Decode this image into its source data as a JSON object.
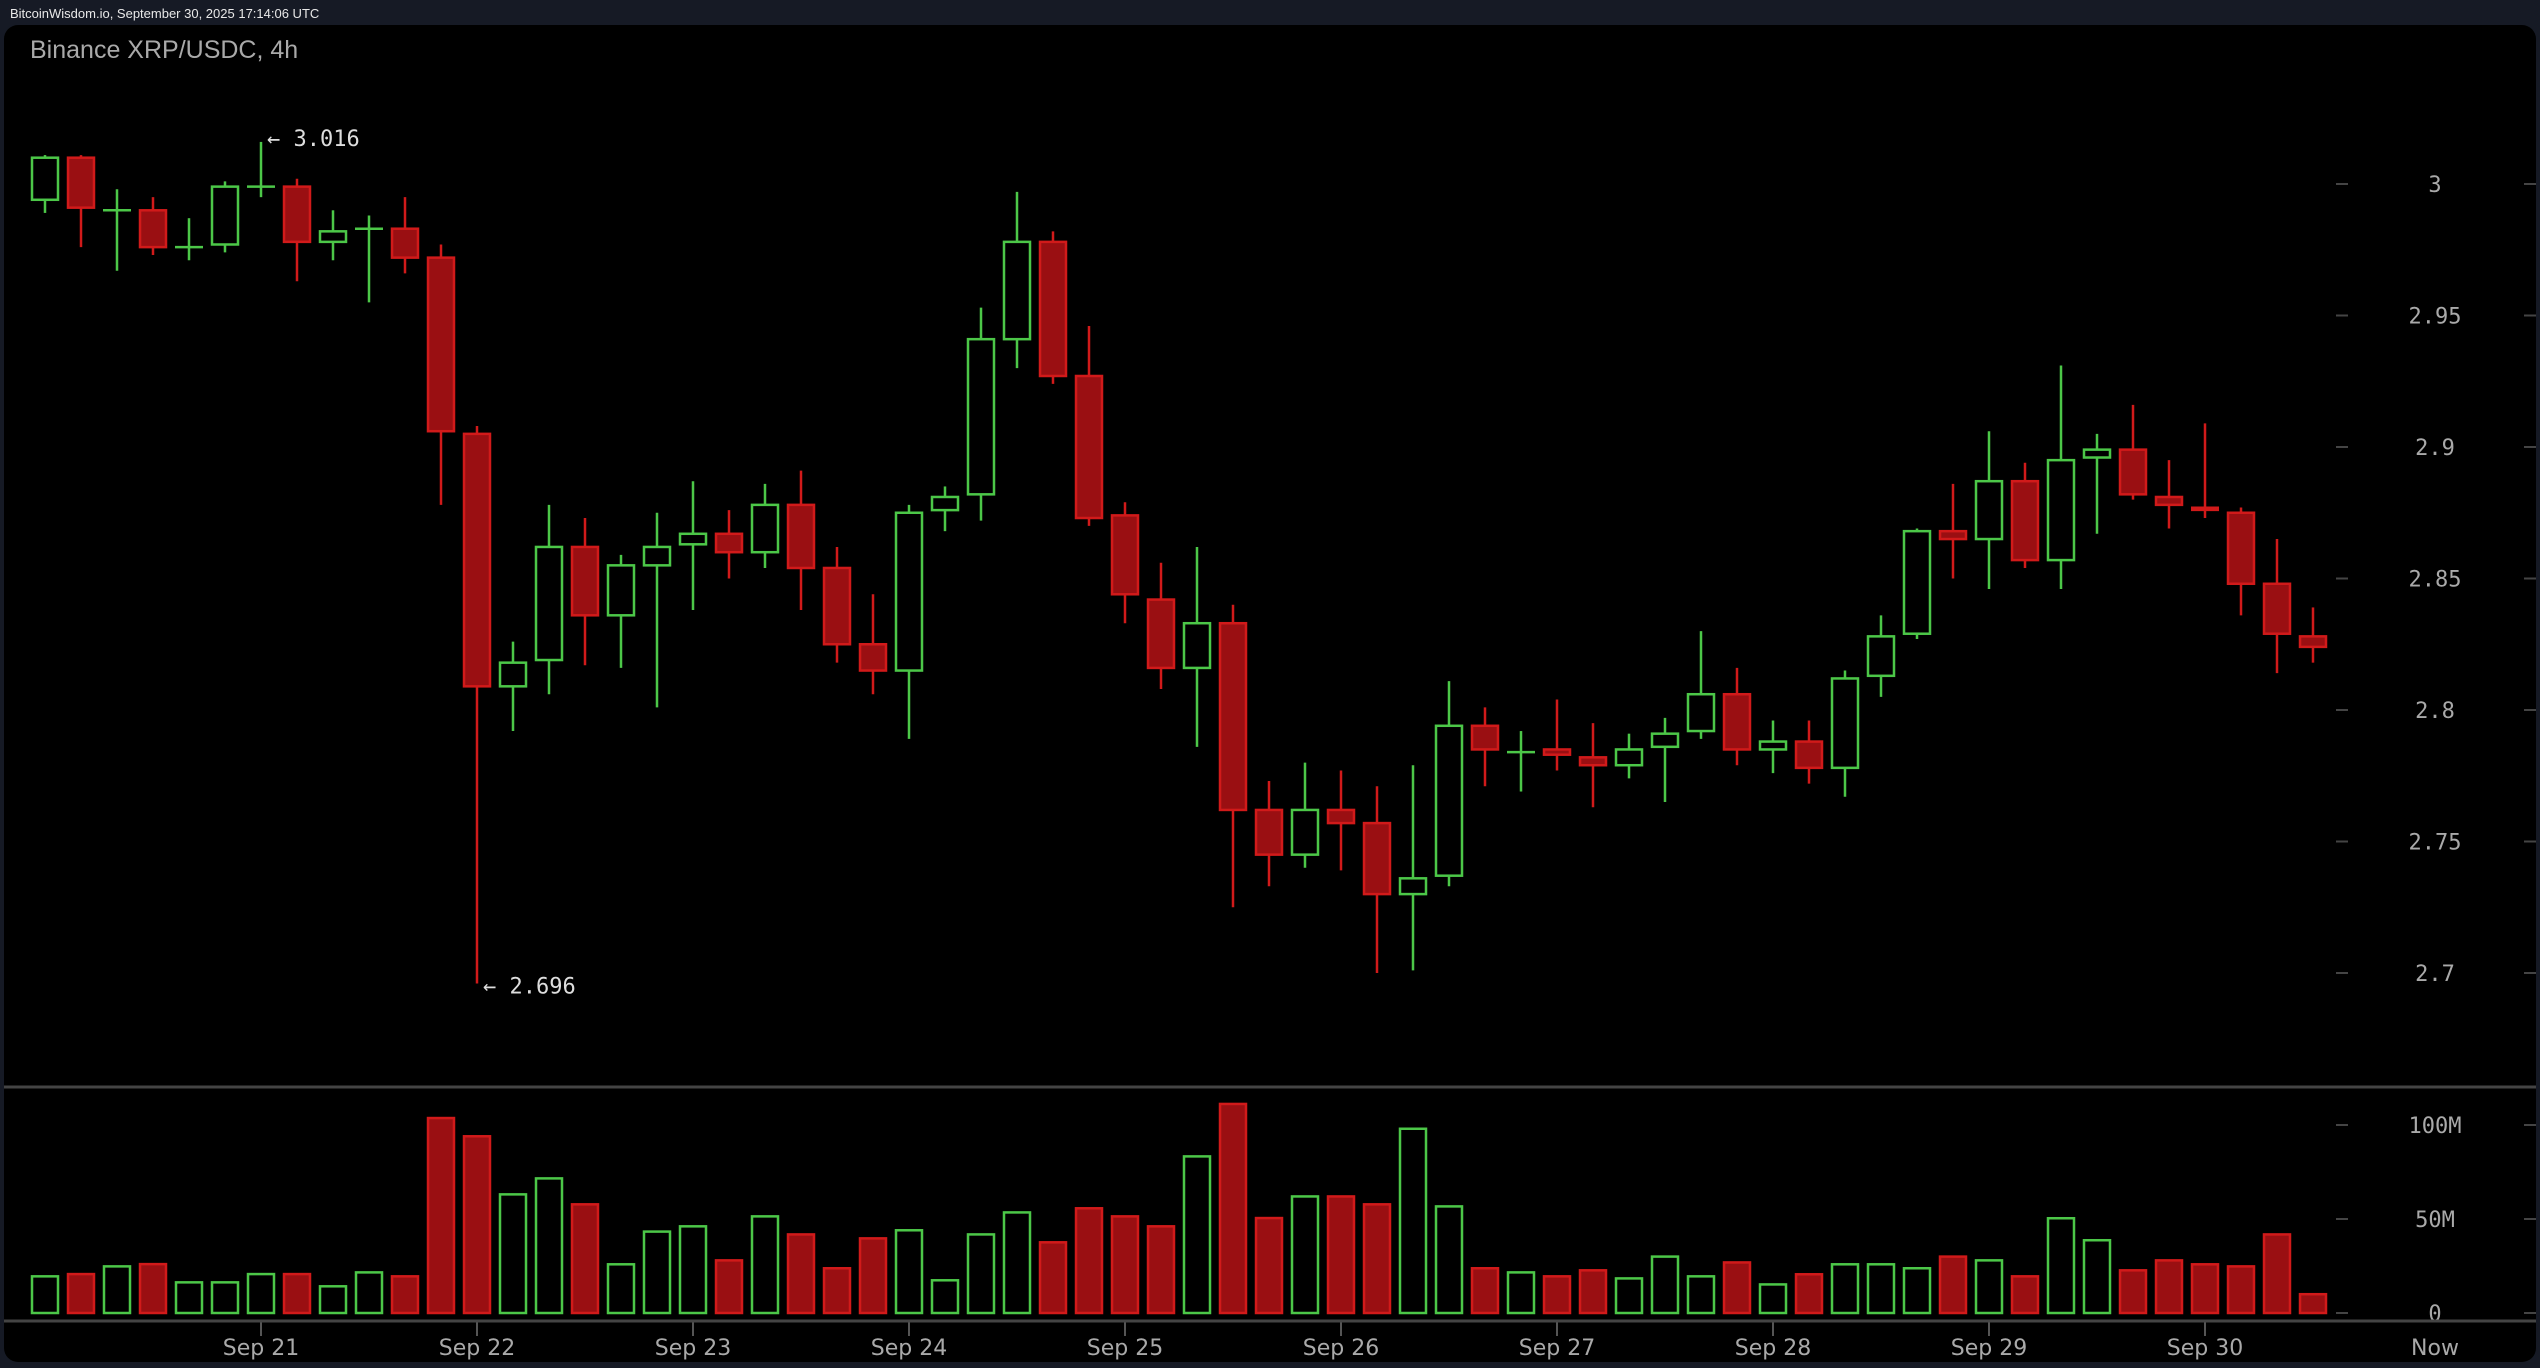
{
  "header": {
    "source_line": "BitcoinWisdom.io, September 30, 2025 17:14:06 UTC",
    "chart_title": "Binance XRP/USDC, 4h"
  },
  "colors": {
    "up": "#4cc748",
    "down": "#d11a1a",
    "down_fill": "#9a0f12",
    "axis_text": "#a9a9a9",
    "annotation_text": "#dddddd",
    "separator": "#444444",
    "page_bg": "#161a25",
    "panel_bg": "#000000"
  },
  "annotations": {
    "high": {
      "label": "← 3.016",
      "value": 3.016,
      "candle_index": 6
    },
    "low": {
      "label": "← 2.696",
      "value": 2.696,
      "candle_index": 12
    }
  },
  "chart_data": {
    "type": "candlestick",
    "title": "Binance XRP/USDC, 4h",
    "xlabel": "",
    "ylabel": "",
    "price_axis": {
      "ticks": [
        3,
        2.95,
        2.9,
        2.85,
        2.8,
        2.75,
        2.7
      ],
      "tick_labels": [
        "3",
        "2.95",
        "2.9",
        "2.85",
        "2.8",
        "2.75",
        "2.7"
      ],
      "ylim": [
        2.66,
        3.04
      ]
    },
    "volume_axis": {
      "ticks": [
        100,
        50,
        0
      ],
      "tick_labels": [
        "100M",
        "50M",
        "0"
      ],
      "unit": "M"
    },
    "x_axis": {
      "tick_labels": [
        "Sep 21",
        "Sep 22",
        "Sep 23",
        "Sep 24",
        "Sep 25",
        "Sep 26",
        "Sep 27",
        "Sep 28",
        "Sep 29",
        "Sep 30",
        "Now"
      ],
      "tick_candle_index": [
        6,
        12,
        18,
        24,
        30,
        36,
        42,
        48,
        54,
        60
      ]
    },
    "grid": false,
    "legend": null,
    "candles": [
      {
        "o": 2.994,
        "h": 3.011,
        "l": 2.989,
        "c": 3.01,
        "v": 19.5
      },
      {
        "o": 3.01,
        "h": 3.011,
        "l": 2.976,
        "c": 2.991,
        "v": 20.7
      },
      {
        "o": 2.99,
        "h": 2.998,
        "l": 2.967,
        "c": 2.99,
        "v": 24.8
      },
      {
        "o": 2.99,
        "h": 2.995,
        "l": 2.973,
        "c": 2.976,
        "v": 26.0
      },
      {
        "o": 2.976,
        "h": 2.987,
        "l": 2.971,
        "c": 2.976,
        "v": 16.3
      },
      {
        "o": 2.977,
        "h": 3.001,
        "l": 2.974,
        "c": 2.999,
        "v": 16.3
      },
      {
        "o": 2.999,
        "h": 3.016,
        "l": 2.995,
        "c": 2.999,
        "v": 20.7
      },
      {
        "o": 2.999,
        "h": 3.002,
        "l": 2.963,
        "c": 2.978,
        "v": 20.7
      },
      {
        "o": 2.978,
        "h": 2.99,
        "l": 2.971,
        "c": 2.982,
        "v": 14.2
      },
      {
        "o": 2.983,
        "h": 2.988,
        "l": 2.955,
        "c": 2.983,
        "v": 21.6
      },
      {
        "o": 2.983,
        "h": 2.995,
        "l": 2.966,
        "c": 2.972,
        "v": 19.5
      },
      {
        "o": 2.972,
        "h": 2.977,
        "l": 2.878,
        "c": 2.906,
        "v": 103.7
      },
      {
        "o": 2.905,
        "h": 2.908,
        "l": 2.696,
        "c": 2.809,
        "v": 94.0
      },
      {
        "o": 2.809,
        "h": 2.826,
        "l": 2.792,
        "c": 2.818,
        "v": 63.1
      },
      {
        "o": 2.819,
        "h": 2.878,
        "l": 2.806,
        "c": 2.862,
        "v": 71.6
      },
      {
        "o": 2.862,
        "h": 2.873,
        "l": 2.817,
        "c": 2.836,
        "v": 57.8
      },
      {
        "o": 2.836,
        "h": 2.859,
        "l": 2.816,
        "c": 2.855,
        "v": 25.9
      },
      {
        "o": 2.855,
        "h": 2.875,
        "l": 2.801,
        "c": 2.862,
        "v": 43.3
      },
      {
        "o": 2.863,
        "h": 2.887,
        "l": 2.838,
        "c": 2.867,
        "v": 46.1
      },
      {
        "o": 2.867,
        "h": 2.876,
        "l": 2.85,
        "c": 2.86,
        "v": 28.0
      },
      {
        "o": 2.86,
        "h": 2.886,
        "l": 2.854,
        "c": 2.878,
        "v": 51.4
      },
      {
        "o": 2.878,
        "h": 2.891,
        "l": 2.838,
        "c": 2.854,
        "v": 41.8
      },
      {
        "o": 2.854,
        "h": 2.862,
        "l": 2.818,
        "c": 2.825,
        "v": 23.8
      },
      {
        "o": 2.825,
        "h": 2.844,
        "l": 2.806,
        "c": 2.815,
        "v": 39.7
      },
      {
        "o": 2.815,
        "h": 2.878,
        "l": 2.789,
        "c": 2.875,
        "v": 44.0
      },
      {
        "o": 2.876,
        "h": 2.885,
        "l": 2.868,
        "c": 2.881,
        "v": 17.4
      },
      {
        "o": 2.882,
        "h": 2.953,
        "l": 2.872,
        "c": 2.941,
        "v": 41.8
      },
      {
        "o": 2.941,
        "h": 2.997,
        "l": 2.93,
        "c": 2.978,
        "v": 53.5
      },
      {
        "o": 2.978,
        "h": 2.982,
        "l": 2.924,
        "c": 2.927,
        "v": 37.6
      },
      {
        "o": 2.927,
        "h": 2.946,
        "l": 2.87,
        "c": 2.873,
        "v": 55.7
      },
      {
        "o": 2.874,
        "h": 2.879,
        "l": 2.833,
        "c": 2.844,
        "v": 51.4
      },
      {
        "o": 2.842,
        "h": 2.856,
        "l": 2.808,
        "c": 2.816,
        "v": 46.1
      },
      {
        "o": 2.816,
        "h": 2.862,
        "l": 2.786,
        "c": 2.833,
        "v": 83.3
      },
      {
        "o": 2.833,
        "h": 2.84,
        "l": 2.725,
        "c": 2.762,
        "v": 111.2
      },
      {
        "o": 2.762,
        "h": 2.773,
        "l": 2.733,
        "c": 2.745,
        "v": 50.5
      },
      {
        "o": 2.745,
        "h": 2.78,
        "l": 2.74,
        "c": 2.762,
        "v": 62.0
      },
      {
        "o": 2.762,
        "h": 2.777,
        "l": 2.739,
        "c": 2.757,
        "v": 62.0
      },
      {
        "o": 2.757,
        "h": 2.771,
        "l": 2.7,
        "c": 2.73,
        "v": 57.8
      },
      {
        "o": 2.73,
        "h": 2.779,
        "l": 2.701,
        "c": 2.736,
        "v": 98.0
      },
      {
        "o": 2.737,
        "h": 2.811,
        "l": 2.733,
        "c": 2.794,
        "v": 56.7
      },
      {
        "o": 2.794,
        "h": 2.801,
        "l": 2.771,
        "c": 2.785,
        "v": 23.8
      },
      {
        "o": 2.784,
        "h": 2.792,
        "l": 2.769,
        "c": 2.784,
        "v": 21.6
      },
      {
        "o": 2.785,
        "h": 2.804,
        "l": 2.777,
        "c": 2.783,
        "v": 19.5
      },
      {
        "o": 2.782,
        "h": 2.795,
        "l": 2.763,
        "c": 2.779,
        "v": 22.7
      },
      {
        "o": 2.779,
        "h": 2.791,
        "l": 2.774,
        "c": 2.785,
        "v": 18.4
      },
      {
        "o": 2.786,
        "h": 2.797,
        "l": 2.765,
        "c": 2.791,
        "v": 30.0
      },
      {
        "o": 2.792,
        "h": 2.83,
        "l": 2.789,
        "c": 2.806,
        "v": 19.5
      },
      {
        "o": 2.806,
        "h": 2.816,
        "l": 2.779,
        "c": 2.785,
        "v": 26.9
      },
      {
        "o": 2.785,
        "h": 2.796,
        "l": 2.776,
        "c": 2.788,
        "v": 15.2
      },
      {
        "o": 2.788,
        "h": 2.796,
        "l": 2.772,
        "c": 2.778,
        "v": 20.6
      },
      {
        "o": 2.778,
        "h": 2.815,
        "l": 2.767,
        "c": 2.812,
        "v": 25.9
      },
      {
        "o": 2.813,
        "h": 2.836,
        "l": 2.805,
        "c": 2.828,
        "v": 25.9
      },
      {
        "o": 2.829,
        "h": 2.869,
        "l": 2.827,
        "c": 2.868,
        "v": 23.8
      },
      {
        "o": 2.868,
        "h": 2.886,
        "l": 2.85,
        "c": 2.865,
        "v": 30.0
      },
      {
        "o": 2.865,
        "h": 2.906,
        "l": 2.846,
        "c": 2.887,
        "v": 28.0
      },
      {
        "o": 2.887,
        "h": 2.894,
        "l": 2.854,
        "c": 2.857,
        "v": 19.5
      },
      {
        "o": 2.857,
        "h": 2.931,
        "l": 2.846,
        "c": 2.895,
        "v": 50.4
      },
      {
        "o": 2.896,
        "h": 2.905,
        "l": 2.867,
        "c": 2.899,
        "v": 38.7
      },
      {
        "o": 2.899,
        "h": 2.916,
        "l": 2.88,
        "c": 2.882,
        "v": 22.7
      },
      {
        "o": 2.881,
        "h": 2.895,
        "l": 2.869,
        "c": 2.878,
        "v": 28.0
      },
      {
        "o": 2.877,
        "h": 2.909,
        "l": 2.873,
        "c": 2.876,
        "v": 25.9
      },
      {
        "o": 2.875,
        "h": 2.877,
        "l": 2.836,
        "c": 2.848,
        "v": 24.8
      },
      {
        "o": 2.848,
        "h": 2.865,
        "l": 2.814,
        "c": 2.829,
        "v": 41.8
      },
      {
        "o": 2.828,
        "h": 2.839,
        "l": 2.818,
        "c": 2.824,
        "v": 10.0
      }
    ]
  }
}
